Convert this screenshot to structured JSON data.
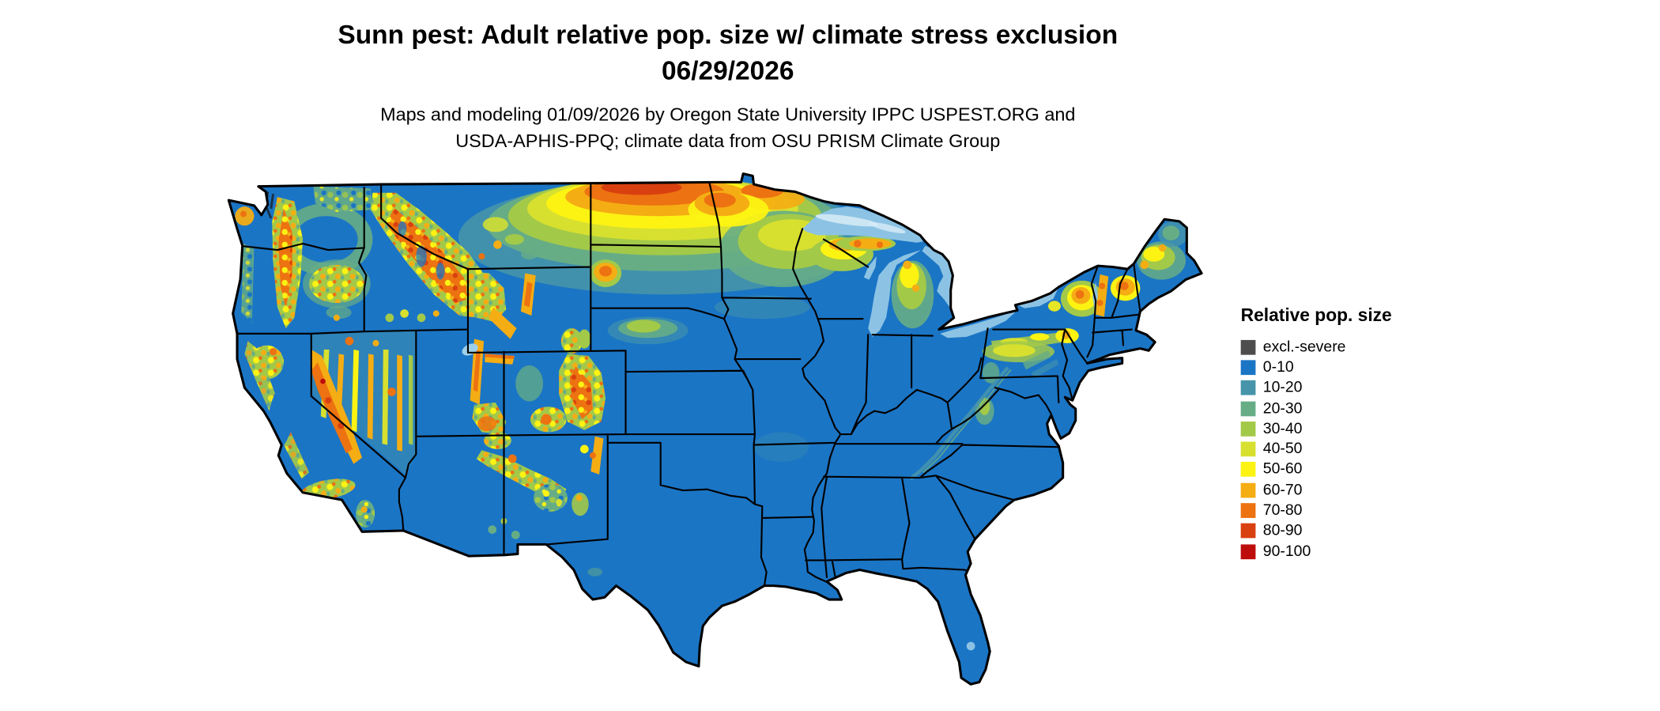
{
  "header": {
    "title": "Sunn pest: Adult relative pop. size w/ climate stress exclusion",
    "date": "06/29/2026",
    "subtitle_line1": "Maps and modeling 01/09/2026 by Oregon State University IPPC USPEST.ORG and",
    "subtitle_line2": "USDA-APHIS-PPQ; climate data from OSU PRISM Climate Group"
  },
  "legend": {
    "title": "Relative pop. size",
    "entries": [
      {
        "label": "excl.-severe",
        "color": "#4d4d4d"
      },
      {
        "label": "0-10",
        "color": "#1b75c5"
      },
      {
        "label": "10-20",
        "color": "#4695aa"
      },
      {
        "label": "20-30",
        "color": "#66ad86"
      },
      {
        "label": "30-40",
        "color": "#a3c949"
      },
      {
        "label": "40-50",
        "color": "#d7e02f"
      },
      {
        "label": "50-60",
        "color": "#fcf313"
      },
      {
        "label": "60-70",
        "color": "#f5ad14"
      },
      {
        "label": "70-80",
        "color": "#ed7211"
      },
      {
        "label": "80-90",
        "color": "#d9400f"
      },
      {
        "label": "90-100",
        "color": "#bd0d0d"
      }
    ]
  },
  "map": {
    "region": "Continental United States",
    "base_color": "#1b75c5",
    "lake_color": "#8cc3e4"
  }
}
